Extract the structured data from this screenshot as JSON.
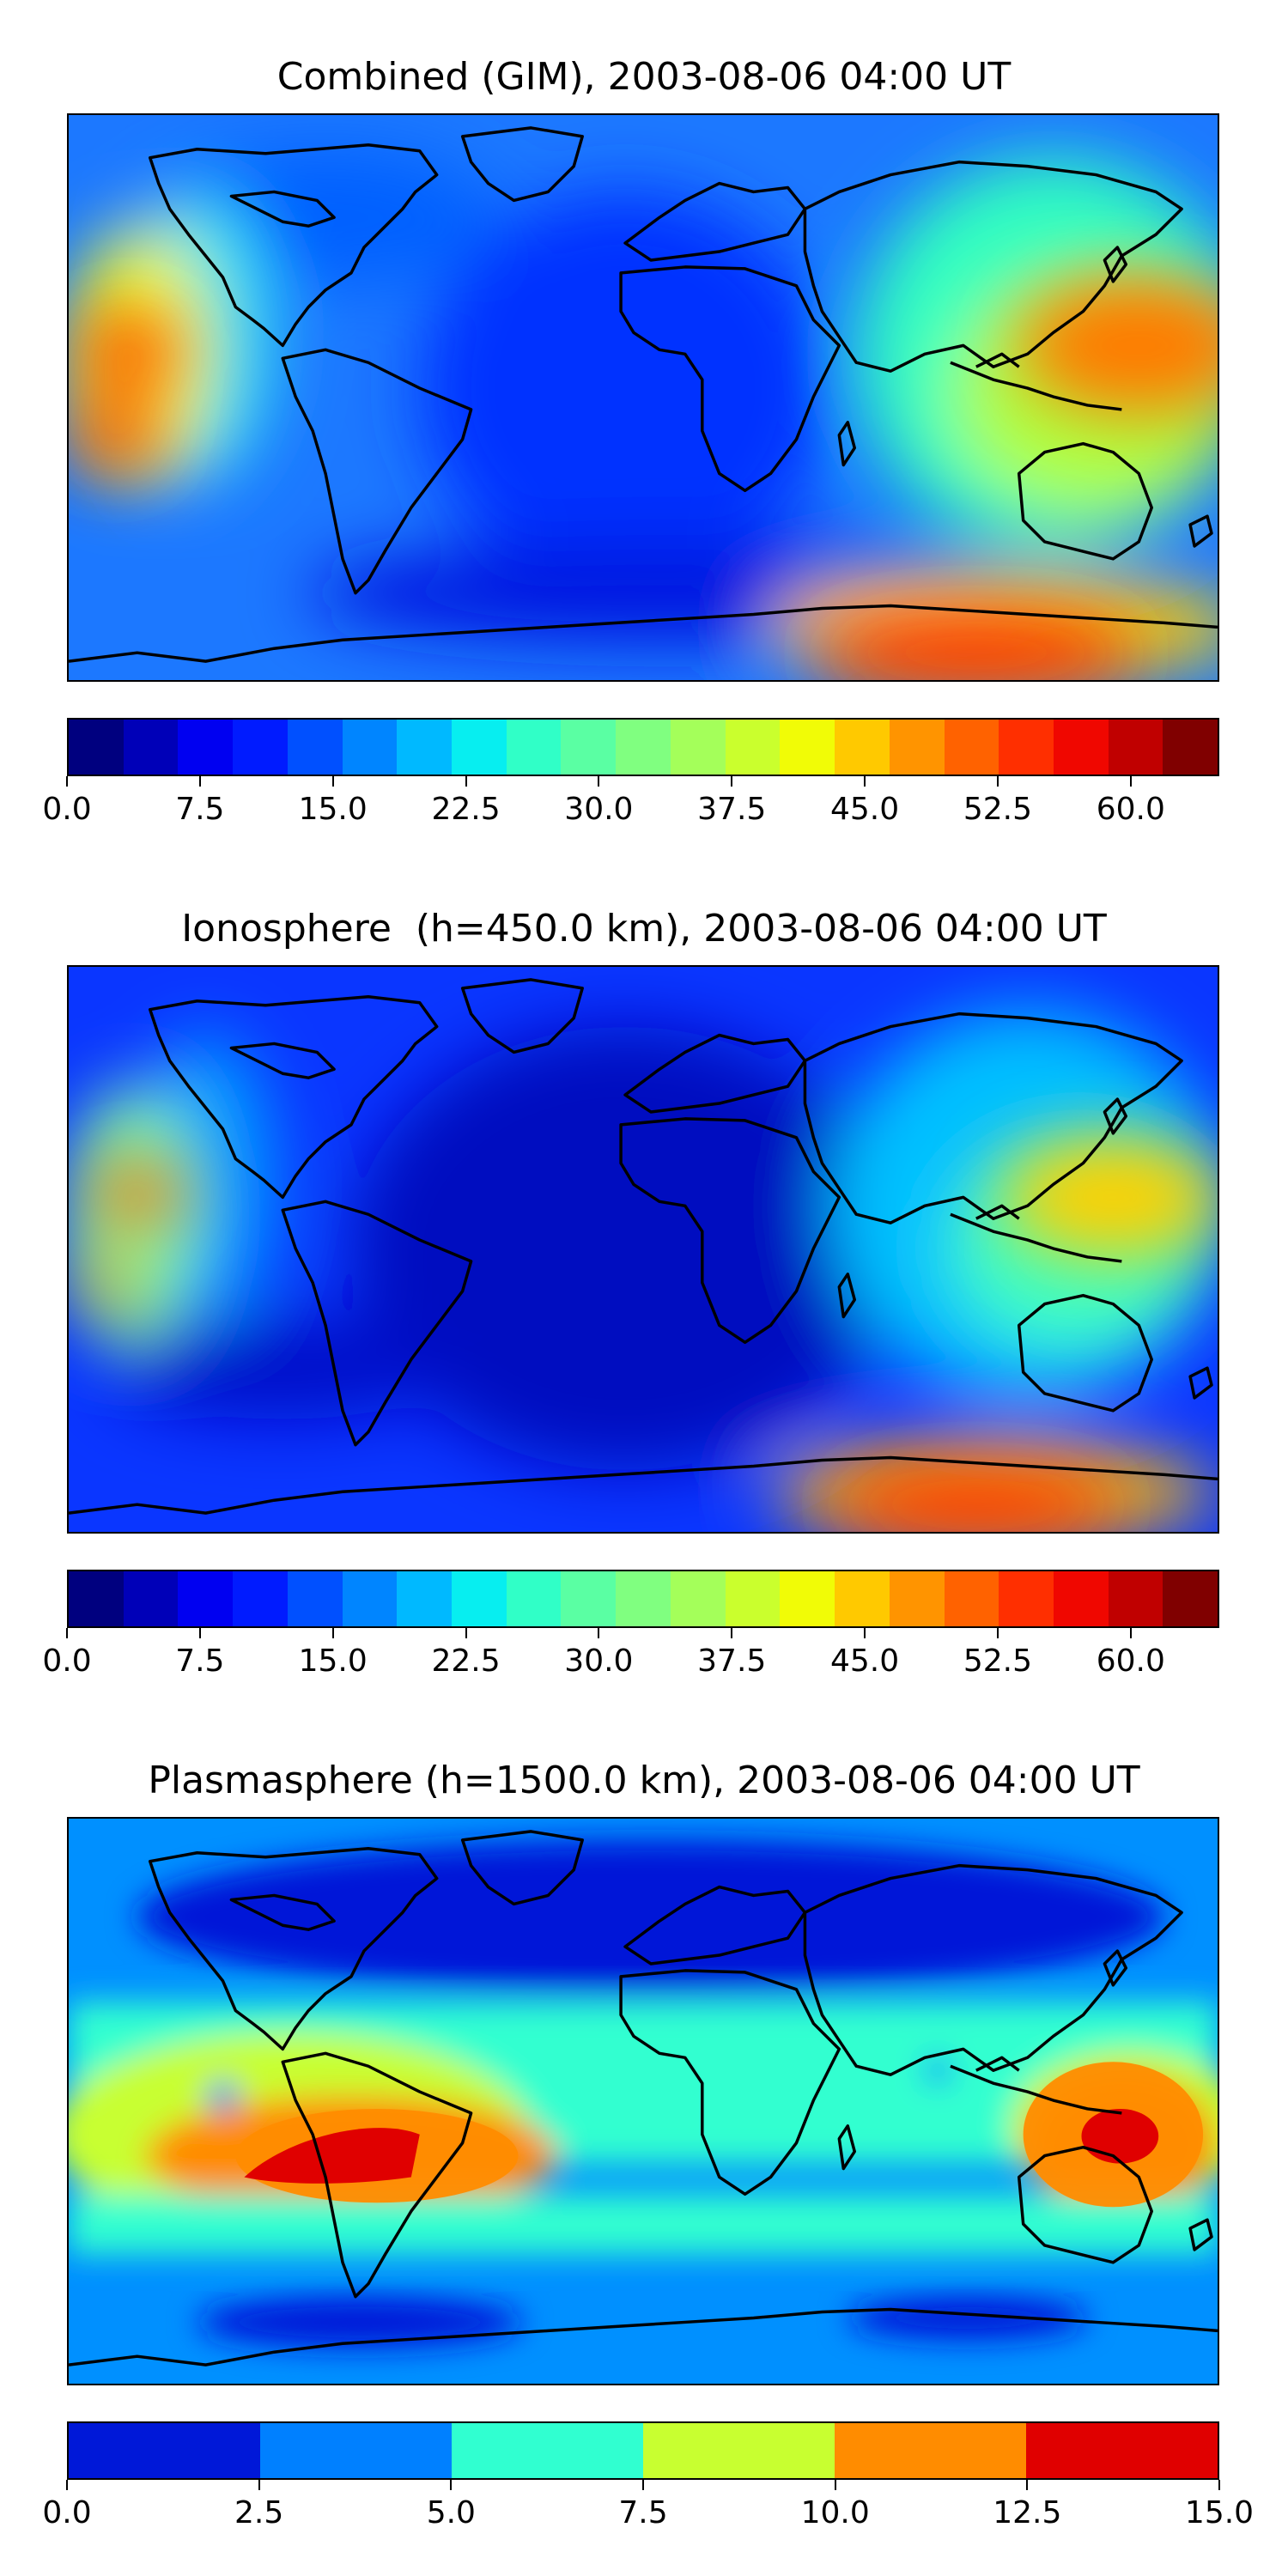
{
  "panels": [
    {
      "title": "Combined (GIM), 2003-08-06 04:00 UT",
      "colorbar": {
        "min": 0,
        "max": 65,
        "ticks": [
          "0.0",
          "7.5",
          "15.0",
          "22.5",
          "30.0",
          "37.5",
          "45.0",
          "52.5",
          "60.0"
        ],
        "colors": [
          "#00007f",
          "#0000b8",
          "#0000f1",
          "#001bff",
          "#0050ff",
          "#0085ff",
          "#00b9ff",
          "#07eef0",
          "#30ffc7",
          "#5affa3",
          "#80ff80",
          "#a4ff5a",
          "#caff2d",
          "#f1fc06",
          "#ffc900",
          "#ff9400",
          "#ff6200",
          "#ff2f00",
          "#f00700",
          "#c00000",
          "#800000"
        ]
      },
      "background": "#1c78ff",
      "hotspots": [
        {
          "color": "#ff4a00",
          "label": "Pacific west-north maximum"
        },
        {
          "color": "#ff4a00",
          "label": "Pacific west-south maximum"
        },
        {
          "color": "#ff7a00",
          "label": "Western Pacific maximum"
        },
        {
          "color": "#ff3000",
          "label": "Southern Indian Ocean maximum"
        }
      ]
    },
    {
      "title": "Ionosphere  (h=450.0 km), 2003-08-06 04:00 UT",
      "colorbar": {
        "min": 0,
        "max": 65,
        "ticks": [
          "0.0",
          "7.5",
          "15.0",
          "22.5",
          "30.0",
          "37.5",
          "45.0",
          "52.5",
          "60.0"
        ],
        "colors": [
          "#00007f",
          "#0000b8",
          "#0000f1",
          "#001bff",
          "#0050ff",
          "#0085ff",
          "#00b9ff",
          "#07eef0",
          "#30ffc7",
          "#5affa3",
          "#80ff80",
          "#a4ff5a",
          "#caff2d",
          "#f1fc06",
          "#ffc900",
          "#ff9400",
          "#ff6200",
          "#ff2f00",
          "#f00700",
          "#c00000",
          "#800000"
        ]
      },
      "background": "#0a36ff",
      "hotspots": [
        {
          "color": "#ff6a00",
          "label": "Pacific west-north maximum"
        },
        {
          "color": "#ffa000",
          "label": "Pacific west-south maximum"
        },
        {
          "color": "#ffd000",
          "label": "Western Pacific maximum"
        },
        {
          "color": "#ff3000",
          "label": "Southern Indian Ocean maximum"
        }
      ]
    },
    {
      "title": "Plasmasphere (h=1500.0 km), 2003-08-06 04:00 UT",
      "colorbar": {
        "min": 0,
        "max": 15,
        "ticks": [
          "0.0",
          "2.5",
          "5.0",
          "7.5",
          "10.0",
          "12.5",
          "15.0"
        ],
        "colors": [
          "#0018d8",
          "#0080ff",
          "#30ffd0",
          "#c8ff30",
          "#ff8c00",
          "#e00000"
        ]
      },
      "background": "#0090ff",
      "hotspots": [
        {
          "color": "#ff8c00",
          "label": "South America maximum"
        },
        {
          "color": "#e00000",
          "label": "South America core"
        },
        {
          "color": "#ff8c00",
          "label": "Australia maximum"
        },
        {
          "color": "#e00000",
          "label": "Australia core"
        }
      ]
    }
  ]
}
